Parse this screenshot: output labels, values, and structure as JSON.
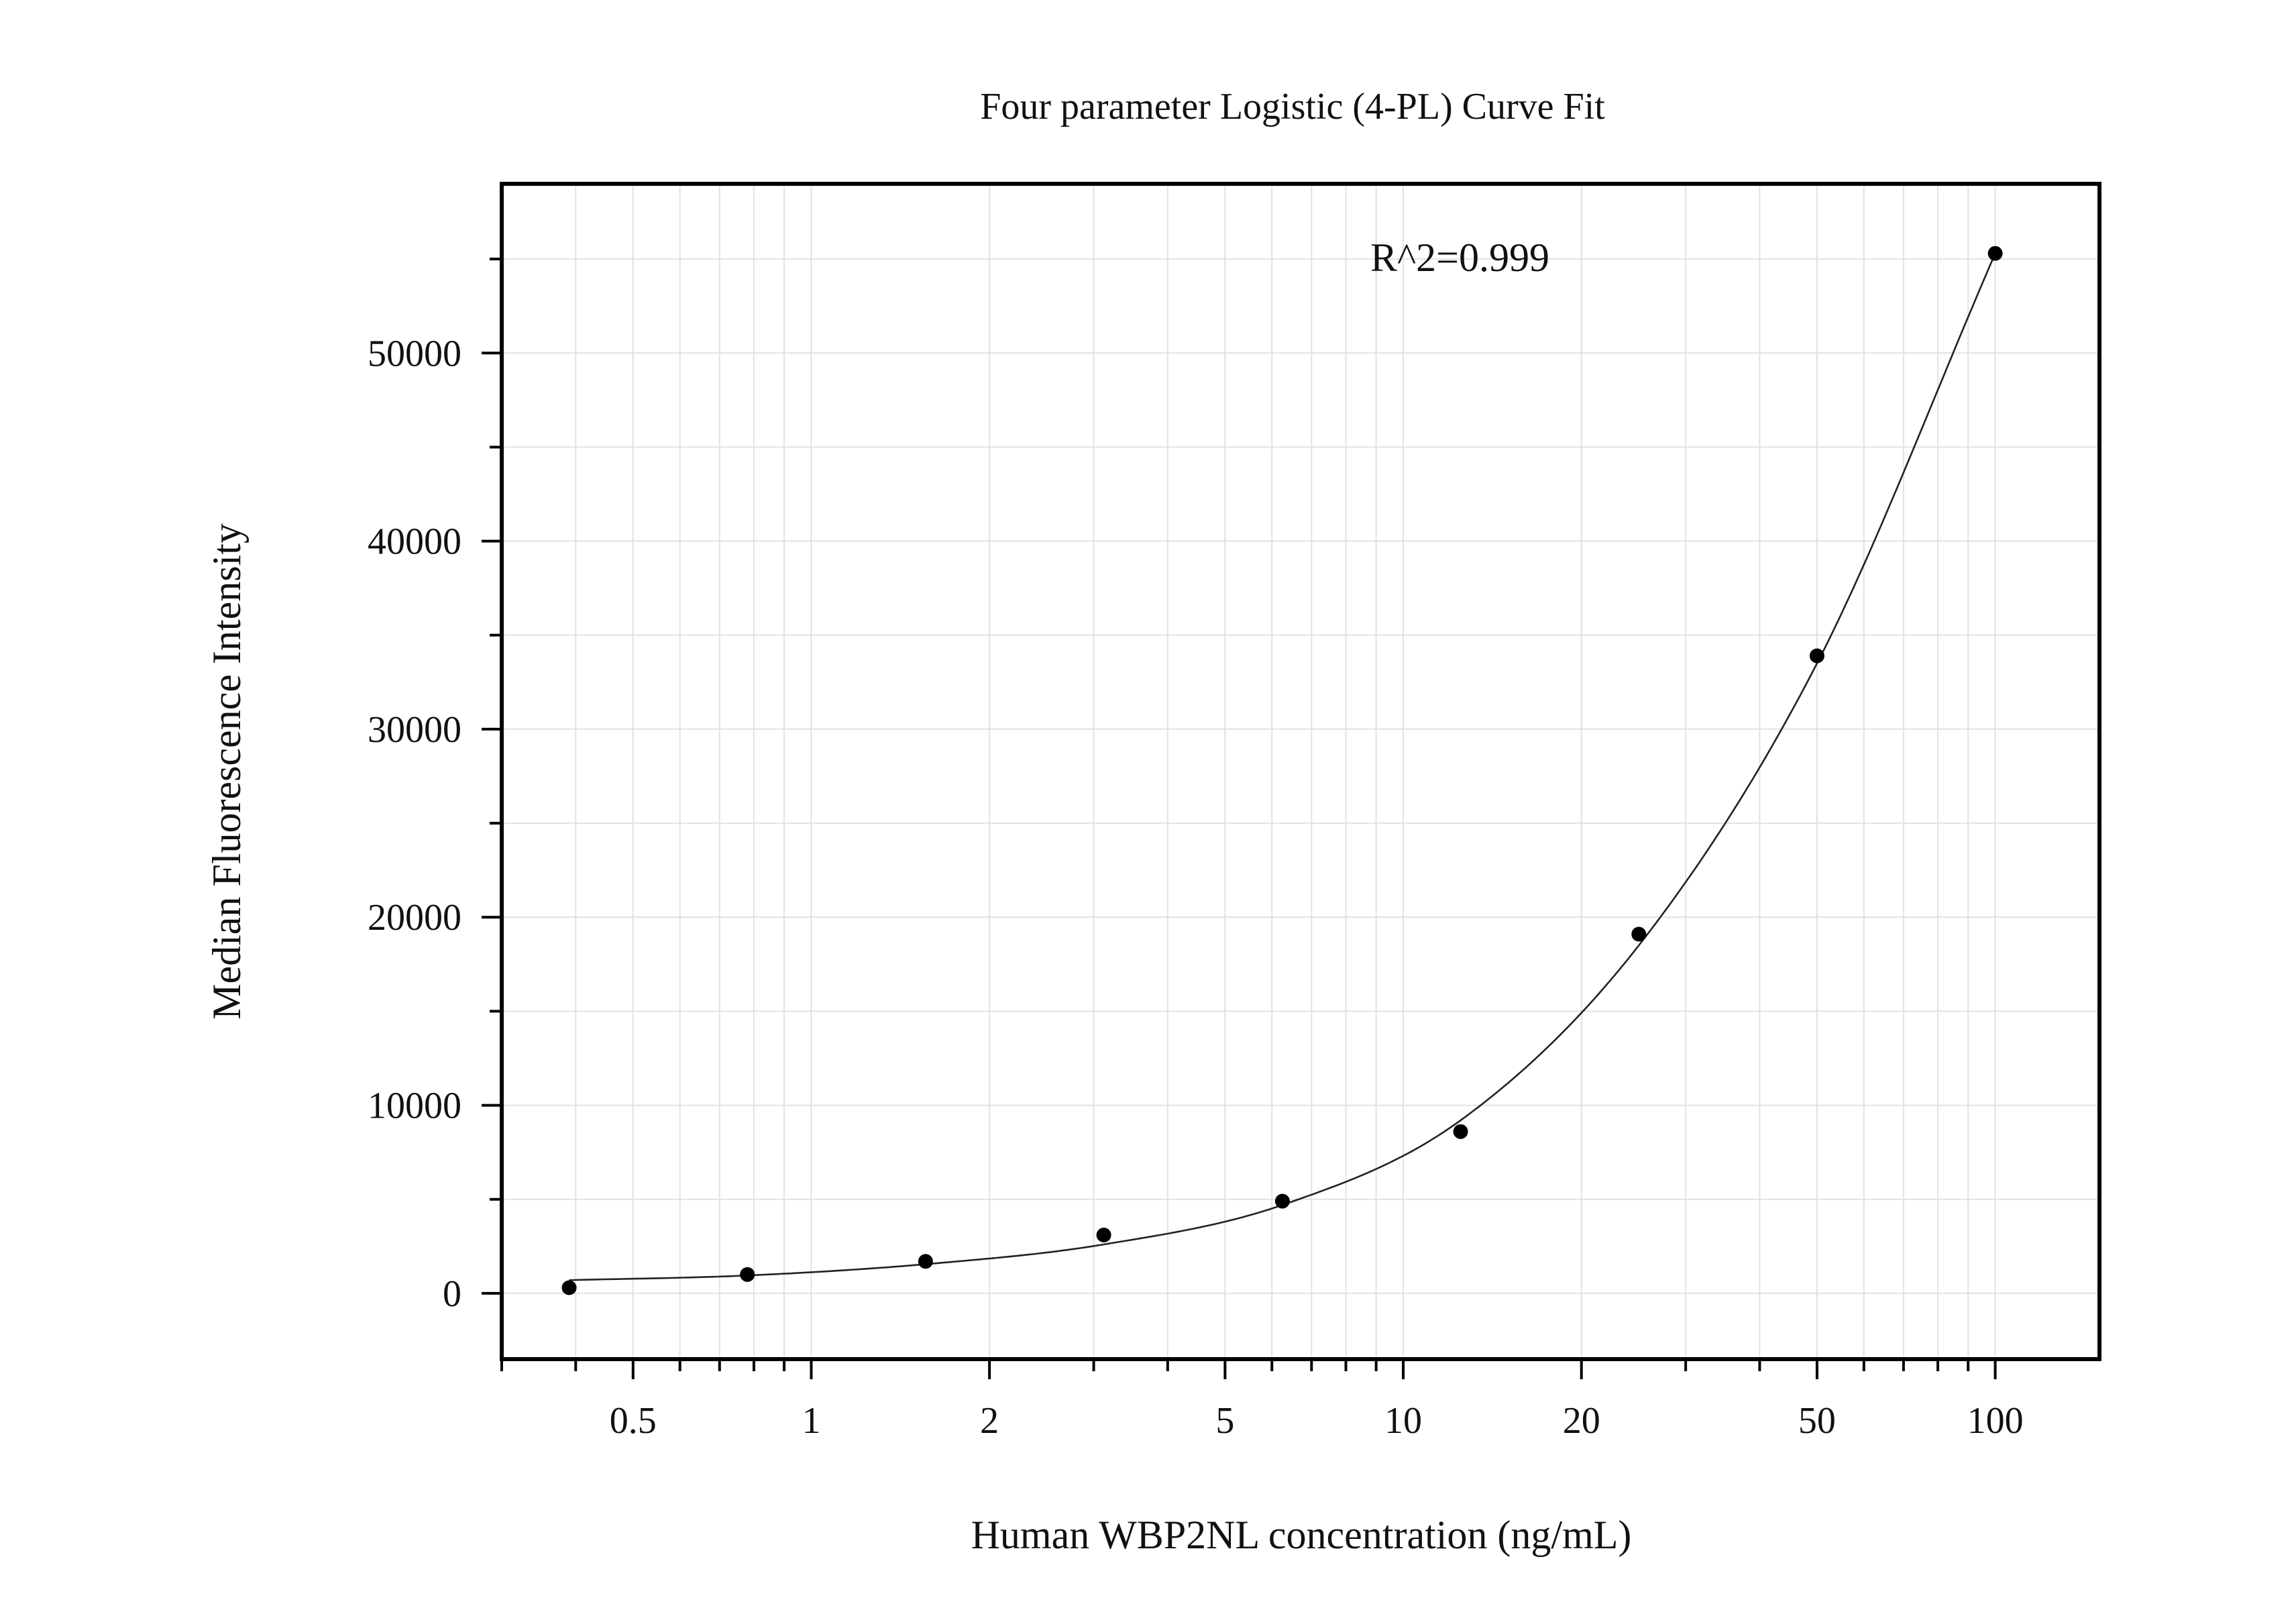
{
  "chart_data": {
    "type": "scatter",
    "title": "Four parameter Logistic (4-PL) Curve Fit",
    "xlabel": "Human WBP2NL concentration (ng/mL)",
    "ylabel": "Median Fluorescence Intensity",
    "x_scale": "log",
    "xlim": [
      0.3,
      150
    ],
    "ylim": [
      -3500,
      59000
    ],
    "x_ticks": [
      0.5,
      1,
      2,
      5,
      10,
      20,
      50,
      100
    ],
    "x_tick_labels": [
      "0.5",
      "1",
      "2",
      "5",
      "10",
      "20",
      "50",
      "100"
    ],
    "y_ticks": [
      0,
      10000,
      20000,
      30000,
      40000,
      50000
    ],
    "y_tick_labels": [
      "0",
      "10000",
      "20000",
      "30000",
      "40000",
      "50000"
    ],
    "grid": true,
    "annotation": "R^2=0.999",
    "series": [
      {
        "points": [
          {
            "x": 0.39,
            "y": 300
          },
          {
            "x": 0.78,
            "y": 1000
          },
          {
            "x": 1.56,
            "y": 1700
          },
          {
            "x": 3.12,
            "y": 3100
          },
          {
            "x": 6.25,
            "y": 4900
          },
          {
            "x": 12.5,
            "y": 8600
          },
          {
            "x": 25,
            "y": 19100
          },
          {
            "x": 50,
            "y": 33900
          },
          {
            "x": 100,
            "y": 55300
          }
        ]
      }
    ],
    "fit_curve": {
      "model": "4-PL",
      "x_range": [
        0.39,
        100
      ],
      "points": [
        {
          "x": 0.39,
          "y": 700
        },
        {
          "x": 0.78,
          "y": 950
        },
        {
          "x": 1.56,
          "y": 1550
        },
        {
          "x": 3.12,
          "y": 2600
        },
        {
          "x": 6.25,
          "y": 4700
        },
        {
          "x": 12.5,
          "y": 9200
        },
        {
          "x": 25,
          "y": 18500
        },
        {
          "x": 50,
          "y": 33500
        },
        {
          "x": 100,
          "y": 55300
        }
      ]
    }
  }
}
